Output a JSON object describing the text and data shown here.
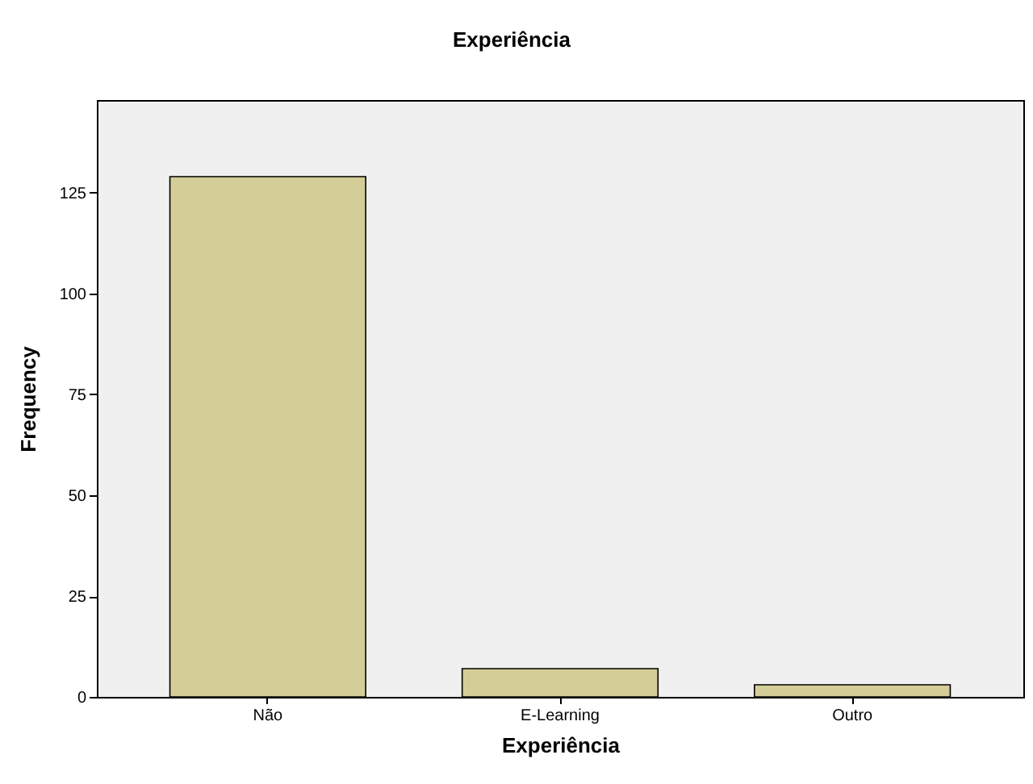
{
  "chart_data": {
    "type": "bar",
    "title": "Experiência",
    "xlabel": "Experiência",
    "ylabel": "Frequency",
    "categories": [
      "Não",
      "E-Learning",
      "Outro"
    ],
    "values": [
      129,
      7,
      3
    ],
    "color": "#d3ce97",
    "ylim": [
      0,
      148
    ],
    "yticks": [
      0,
      25,
      50,
      75,
      100,
      125
    ],
    "grid": false
  }
}
